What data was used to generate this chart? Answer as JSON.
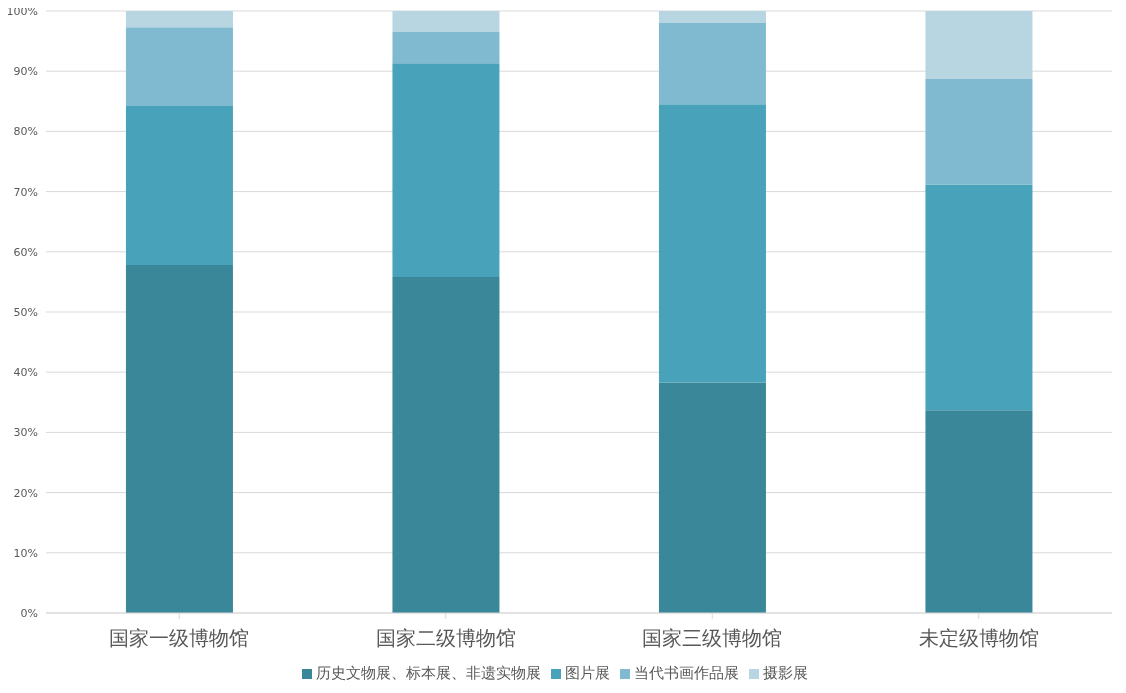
{
  "chart_data": {
    "type": "bar",
    "stacked": true,
    "categories": [
      "国家一级博物馆",
      "国家二级博物馆",
      "国家三级博物馆",
      "未定级博物馆"
    ],
    "series": [
      {
        "name": "历史文物展、标本展、非遗实物展",
        "color": "#3a8799",
        "values": [
          57.8,
          55.8,
          38.3,
          33.7
        ]
      },
      {
        "name": "图片展",
        "color": "#48a2ba",
        "values": [
          26.4,
          35.5,
          46.2,
          37.5
        ]
      },
      {
        "name": "当代书画作品展",
        "color": "#7fbad0",
        "values": [
          13.1,
          5.2,
          13.5,
          17.5
        ]
      },
      {
        "name": "摄影展",
        "color": "#b7d6e1",
        "values": [
          2.7,
          3.5,
          2.0,
          11.3
        ]
      }
    ],
    "ylim": [
      0,
      100
    ],
    "yticks": [
      {
        "value": 0,
        "label": "0%"
      },
      {
        "value": 10,
        "label": "10%"
      },
      {
        "value": 20,
        "label": "20%"
      },
      {
        "value": 30,
        "label": "30%"
      },
      {
        "value": 40,
        "label": "40%"
      },
      {
        "value": 50,
        "label": "50%"
      },
      {
        "value": 60,
        "label": "60%"
      },
      {
        "value": 70,
        "label": "70%"
      },
      {
        "value": 80,
        "label": "80%"
      },
      {
        "value": 90,
        "label": "90%"
      },
      {
        "value": 100,
        "label": "100%"
      }
    ],
    "grid": "y",
    "legend": "bottom"
  }
}
